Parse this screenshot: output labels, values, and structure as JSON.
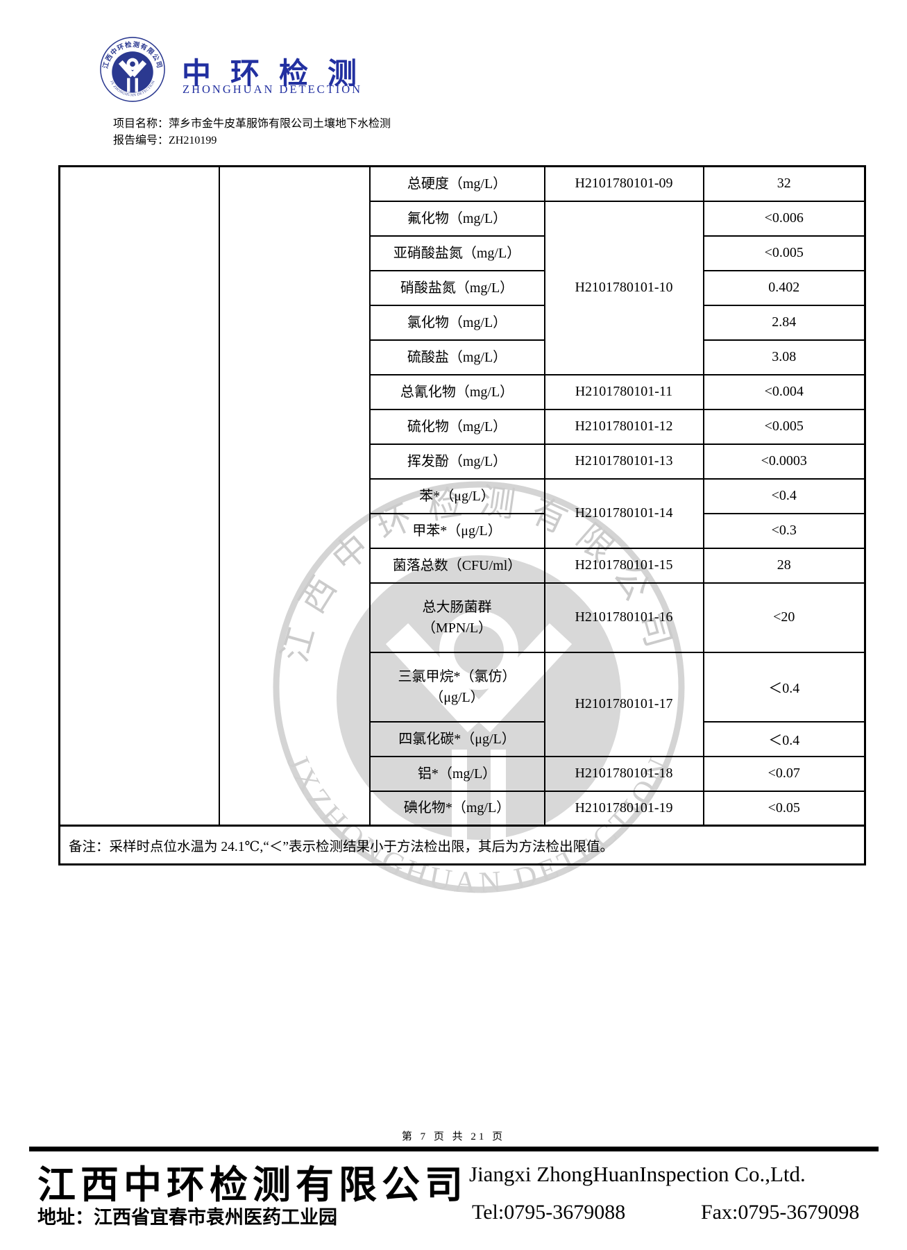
{
  "header": {
    "brand_cn": "中环检测",
    "brand_en": "ZHONGHUAN  DETECTION",
    "project_line": "项目名称：萍乡市金牛皮革服饰有限公司土壤地下水检测",
    "report_line": "报告编号：ZH210199"
  },
  "logo": {
    "arc_top": "江西中环检测有限公司",
    "arc_bottom": "JX ZHONGHUAN DETECTION",
    "color": "#2b3990"
  },
  "watermark": {
    "arc_top": "江西中环检测有限公司",
    "arc_bottom": "JXZHONGHUAN DETECTION",
    "color": "#d6d6d6"
  },
  "table": {
    "rows": [
      {
        "param": "总硬度（mg/L）",
        "sample_id": "H2101780101-09",
        "id_rowspan": 1,
        "value": "32"
      },
      {
        "param": "氟化物（mg/L）",
        "sample_id": "H2101780101-10",
        "id_rowspan": 5,
        "value": "<0.006"
      },
      {
        "param": "亚硝酸盐氮（mg/L）",
        "value": "<0.005"
      },
      {
        "param": "硝酸盐氮（mg/L）",
        "value": "0.402"
      },
      {
        "param": "氯化物（mg/L）",
        "value": "2.84"
      },
      {
        "param": "硫酸盐（mg/L）",
        "value": "3.08"
      },
      {
        "param": "总氰化物（mg/L）",
        "sample_id": "H2101780101-11",
        "id_rowspan": 1,
        "value": "<0.004"
      },
      {
        "param": "硫化物（mg/L）",
        "sample_id": "H2101780101-12",
        "id_rowspan": 1,
        "value": "<0.005"
      },
      {
        "param": "挥发酚（mg/L）",
        "sample_id": "H2101780101-13",
        "id_rowspan": 1,
        "value": "<0.0003"
      },
      {
        "param": "苯*（μg/L）",
        "sample_id": "H2101780101-14",
        "id_rowspan": 2,
        "value": "<0.4"
      },
      {
        "param": "甲苯*（μg/L）",
        "value": "<0.3"
      },
      {
        "param": "菌落总数（CFU/ml）",
        "sample_id": "H2101780101-15",
        "id_rowspan": 1,
        "value": "28"
      },
      {
        "param": "总大肠菌群\n（MPN/L）",
        "sample_id": "H2101780101-16",
        "id_rowspan": 1,
        "value": "<20",
        "tall": true
      },
      {
        "param": "三氯甲烷*（氯仿）\n（μg/L）",
        "sample_id": "H2101780101-17",
        "id_rowspan": 2,
        "value": "＜0.4",
        "tall": true
      },
      {
        "param": "四氯化碳*（μg/L）",
        "value": "＜0.4"
      },
      {
        "param": "铝*（mg/L）",
        "sample_id": "H2101780101-18",
        "id_rowspan": 1,
        "value": "<0.07"
      },
      {
        "param": "碘化物*（mg/L）",
        "sample_id": "H2101780101-19",
        "id_rowspan": 1,
        "value": "<0.05"
      }
    ],
    "note": "备注：采样时点位水温为 24.1℃,“＜”表示检测结果小于方法检出限，其后为方法检出限值。"
  },
  "footer": {
    "page_line": "第 7 页 共 21 页",
    "company_cn": "江西中环检测有限公司",
    "company_en": "Jiangxi  ZhongHuanInspection  Co.,Ltd.",
    "address": "地址：江西省宜春市袁州医药工业园",
    "tel": "Tel:0795-3679088",
    "fax": "Fax:0795-3679098"
  }
}
